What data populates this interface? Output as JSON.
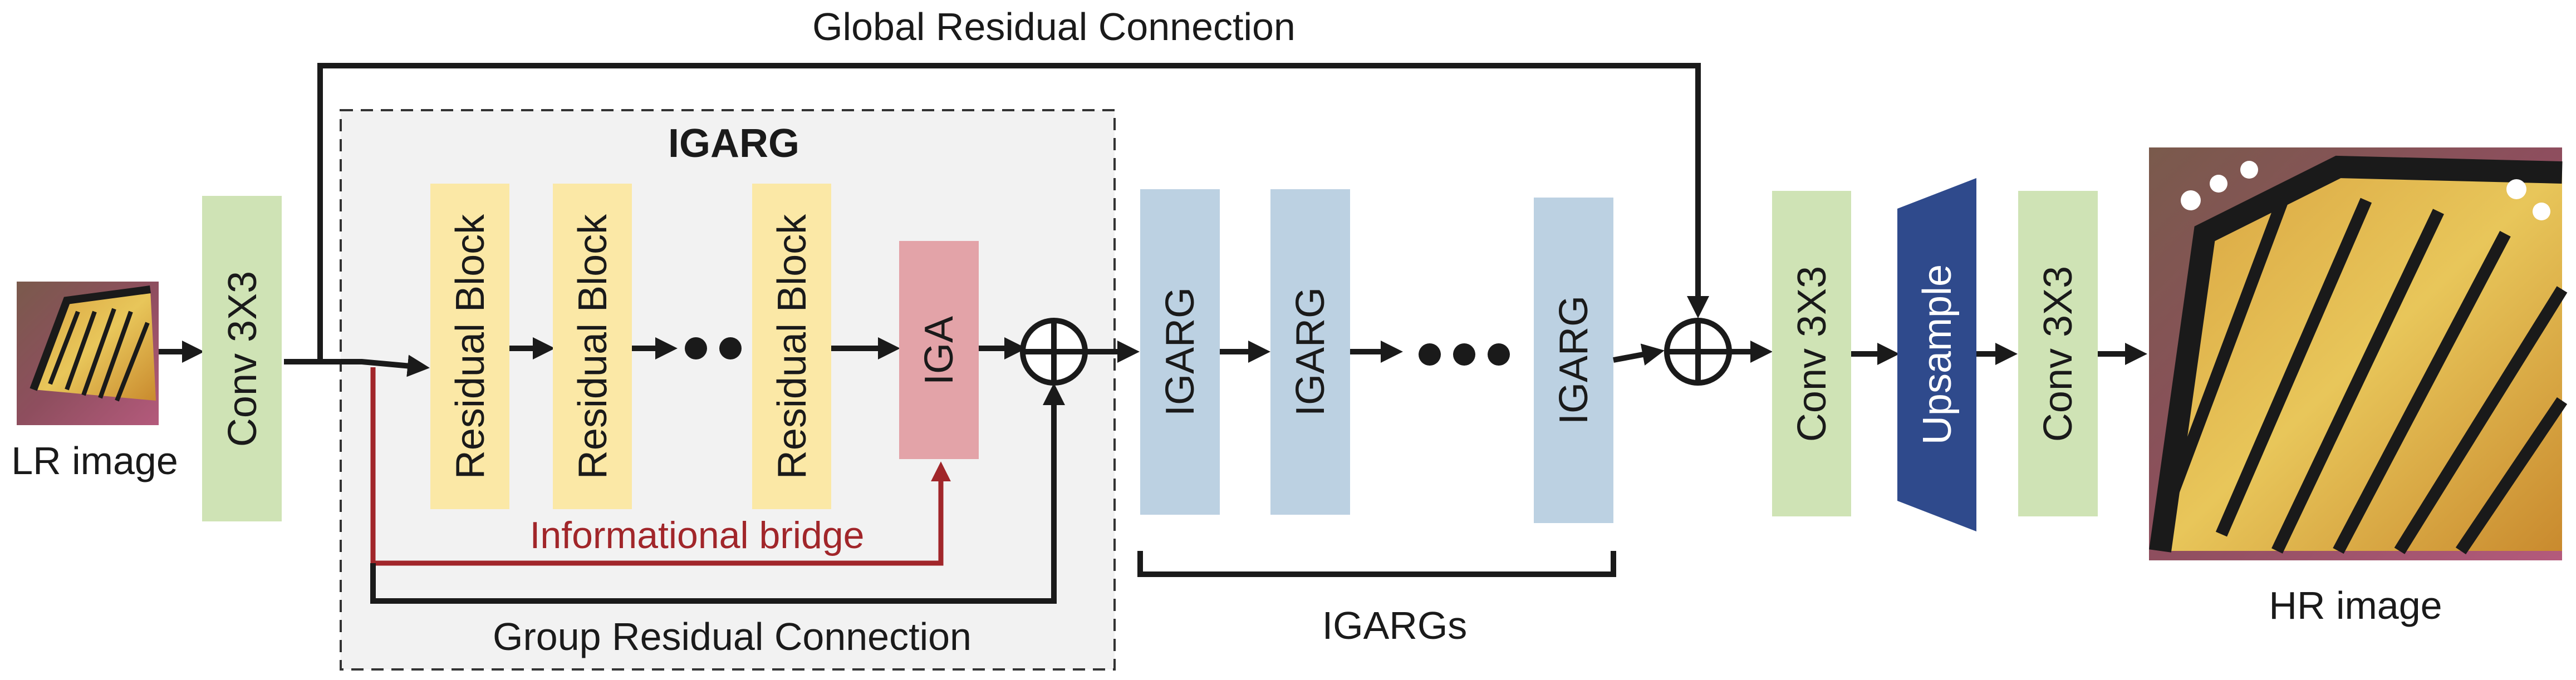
{
  "labels": {
    "global_residual": "Global Residual Connection",
    "group_title": "IGARG",
    "lr_image": "LR image",
    "hr_image": "HR image",
    "informational_bridge": "Informational bridge",
    "group_residual": "Group Residual Connection",
    "igargs": "IGARGs"
  },
  "blocks": {
    "conv_in": "Conv 3X3",
    "residual_1": "Residual Block",
    "residual_2": "Residual Block",
    "residual_3": "Residual Block",
    "iga": "IGA",
    "igarg_1": "IGARG",
    "igarg_2": "IGARG",
    "igarg_3": "IGARG",
    "conv_mid": "Conv 3X3",
    "upsample": "Upsample",
    "conv_out": "Conv 3X3"
  },
  "colors": {
    "conv": "#cfe3b5",
    "residual": "#fbe8a6",
    "iga": "#e3a3a8",
    "igarg": "#bcd1e2",
    "upsample": "#2f4a8c",
    "group_bg": "#f2f2f2",
    "bridge": "#a1262a"
  }
}
